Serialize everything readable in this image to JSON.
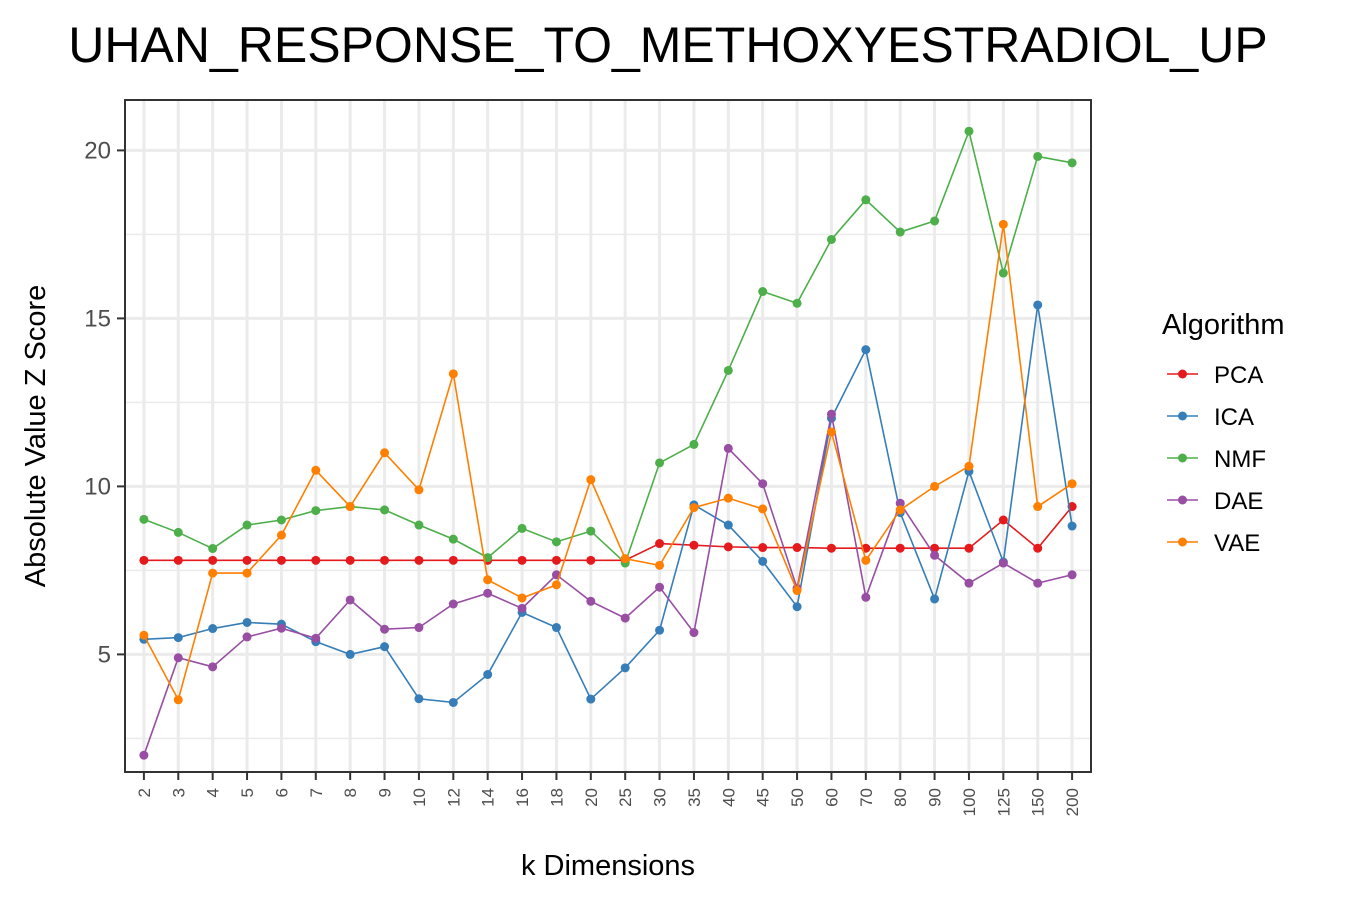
{
  "chart_data": {
    "type": "line",
    "title": "UHAN_RESPONSE_TO_METHOXYESTRADIOL_UP",
    "xlabel": "k Dimensions",
    "ylabel": "Absolute Value Z Score",
    "categories": [
      "2",
      "3",
      "4",
      "5",
      "6",
      "7",
      "8",
      "9",
      "10",
      "12",
      "14",
      "16",
      "18",
      "20",
      "25",
      "30",
      "35",
      "40",
      "45",
      "50",
      "60",
      "70",
      "80",
      "90",
      "100",
      "125",
      "150",
      "200"
    ],
    "yticks": [
      5,
      10,
      15,
      20
    ],
    "ylim": [
      1.5,
      21.5
    ],
    "grid": true,
    "legend": {
      "title": "Algorithm",
      "placement": "right"
    },
    "series": [
      {
        "name": "PCA",
        "color": "#e41a1c",
        "values": [
          7.8,
          7.8,
          7.8,
          7.8,
          7.8,
          7.8,
          7.8,
          7.8,
          7.8,
          7.8,
          7.8,
          7.8,
          7.8,
          7.8,
          7.8,
          8.3,
          8.25,
          8.2,
          8.18,
          8.18,
          8.16,
          8.16,
          8.16,
          8.16,
          8.16,
          9.0,
          8.16,
          9.4
        ]
      },
      {
        "name": "ICA",
        "color": "#377eb8",
        "values": [
          5.45,
          5.5,
          5.77,
          5.95,
          5.9,
          5.38,
          5.0,
          5.23,
          3.68,
          3.57,
          4.4,
          6.25,
          5.8,
          3.67,
          4.6,
          5.72,
          9.45,
          8.85,
          7.77,
          6.42,
          12.03,
          14.07,
          9.22,
          6.65,
          10.45,
          7.75,
          15.4,
          8.82
        ]
      },
      {
        "name": "NMF",
        "color": "#4daf4a",
        "values": [
          9.02,
          8.63,
          8.15,
          8.85,
          9.0,
          9.28,
          9.4,
          9.3,
          8.85,
          8.43,
          7.88,
          8.75,
          8.35,
          8.67,
          7.72,
          10.7,
          11.25,
          13.45,
          15.8,
          15.45,
          17.35,
          18.53,
          17.57,
          17.9,
          20.57,
          16.35,
          19.82,
          19.63
        ]
      },
      {
        "name": "DAE",
        "color": "#984ea3",
        "values": [
          2.0,
          4.9,
          4.63,
          5.52,
          5.78,
          5.48,
          6.62,
          5.75,
          5.8,
          6.5,
          6.82,
          6.37,
          7.37,
          6.58,
          6.08,
          7.0,
          5.65,
          11.13,
          10.08,
          6.97,
          12.15,
          6.7,
          9.5,
          7.95,
          7.12,
          7.72,
          7.12,
          7.37
        ]
      },
      {
        "name": "VAE",
        "color": "#ff7f00",
        "values": [
          5.57,
          3.65,
          7.42,
          7.42,
          8.55,
          10.48,
          9.4,
          11.0,
          9.9,
          13.35,
          7.22,
          6.68,
          7.07,
          10.2,
          7.85,
          7.65,
          9.37,
          9.65,
          9.33,
          6.9,
          11.62,
          7.8,
          9.3,
          10.0,
          10.6,
          17.8,
          9.4,
          10.08
        ]
      }
    ]
  }
}
